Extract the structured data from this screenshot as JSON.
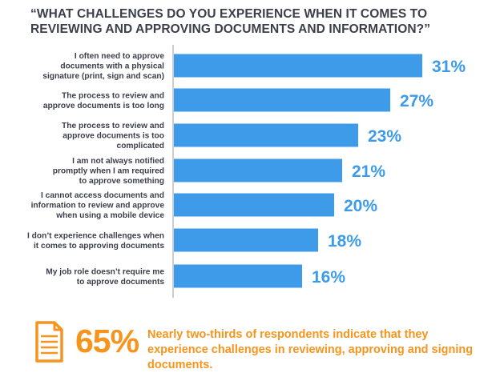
{
  "chart_data": {
    "type": "bar",
    "orientation": "horizontal",
    "title": "“WHAT CHALLENGES DO YOU EXPERIENCE WHEN IT COMES TO REVIEWING AND APPROVING DOCUMENTS AND INFORMATION?”",
    "categories": [
      [
        "I often need to approve",
        "documents with a physical",
        "signature (print, sign and scan)"
      ],
      [
        "The process to review and",
        "approve documents is too long"
      ],
      [
        "The process to review and",
        "approve documents is too",
        "complicated"
      ],
      [
        "I am not always notified",
        "promptly when I am required",
        "to approve something"
      ],
      [
        "I cannot access documents and",
        "information to review and approve",
        "when using a mobile device"
      ],
      [
        "I don’t experience challenges when",
        "it comes to approving documents"
      ],
      [
        "My job role doesn’t require me",
        "to approve documents"
      ]
    ],
    "values": [
      31,
      27,
      23,
      21,
      20,
      18,
      16
    ],
    "value_labels": [
      "31%",
      "27%",
      "23%",
      "21%",
      "20%",
      "18%",
      "16%"
    ],
    "bar_color": "#3d9be9",
    "label_color": "#3d9be9",
    "xlim": [
      0,
      31
    ],
    "grid": false,
    "legend": "none"
  },
  "footer": {
    "percent": "65%",
    "text": "Nearly two-thirds of respondents indicate that they experience challenges in reviewing, approving and signing documents.",
    "accent": "#f7941d",
    "icon": "document-icon"
  }
}
